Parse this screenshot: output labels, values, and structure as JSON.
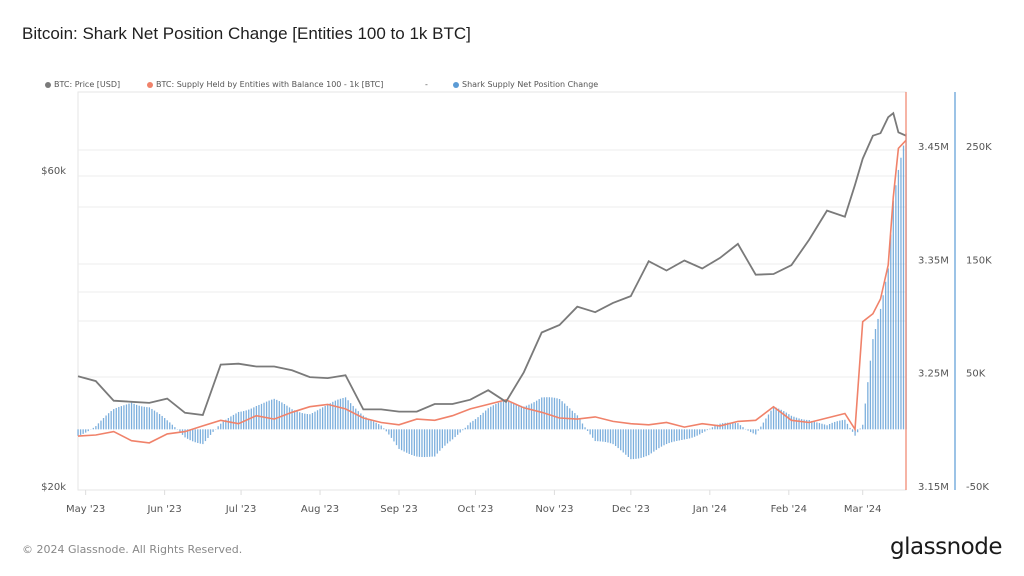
{
  "page": {
    "title": "Bitcoin: Shark Net Position Change [Entities 100 to 1k BTC]",
    "footer": "© 2024 Glassnode. All Rights Reserved.",
    "brand": "glassnode"
  },
  "legend": [
    {
      "label": "BTC: Price [USD]",
      "color": "#7a7a7a"
    },
    {
      "label": "BTC: Supply Held by Entities with Balance 100 - 1k [BTC]",
      "color": "#f0826a"
    },
    {
      "label": "-",
      "color": null
    },
    {
      "label": "Shark Supply Net Position Change",
      "color": "#5b9bd5"
    }
  ],
  "chart_data": {
    "type": "line",
    "title": "Bitcoin: Shark Net Position Change [Entities 100 to 1k BTC]",
    "x_tick_labels": [
      "May '23",
      "Jun '23",
      "Jul '23",
      "Aug '23",
      "Sep '23",
      "Oct '23",
      "Nov '23",
      "Dec '23",
      "Jan '24",
      "Feb '24",
      "Mar '24"
    ],
    "x_tick_dates": [
      "2023-05-01",
      "2023-06-01",
      "2023-07-01",
      "2023-08-01",
      "2023-09-01",
      "2023-10-01",
      "2023-11-01",
      "2023-12-01",
      "2024-01-01",
      "2024-02-01",
      "2024-03-01"
    ],
    "x_range": [
      "2023-04-28",
      "2024-03-18"
    ],
    "axes": {
      "price": {
        "side": "left",
        "scale": "log",
        "range": [
          20000,
          80000
        ],
        "tick_labels": [
          "$20k",
          "$60k"
        ],
        "tick_values": [
          20000,
          60000
        ]
      },
      "supply": {
        "side": "right",
        "scale": "linear",
        "range": [
          3.15,
          3.497
        ],
        "tick_labels": [
          "3.15M",
          "3.25M",
          "3.35M",
          "3.45M"
        ],
        "tick_values": [
          3.15,
          3.25,
          3.35,
          3.45
        ]
      },
      "net_change": {
        "side": "right-outer",
        "scale": "linear",
        "range": [
          -50,
          297
        ],
        "tick_labels": [
          "-50K",
          "50K",
          "150K",
          "250K"
        ],
        "tick_values": [
          -50,
          50,
          150,
          250
        ]
      }
    },
    "grid": true,
    "legend_position": "top-left",
    "x": [
      "2023-04-28",
      "2023-05-05",
      "2023-05-12",
      "2023-05-19",
      "2023-05-26",
      "2023-06-02",
      "2023-06-09",
      "2023-06-16",
      "2023-06-23",
      "2023-06-30",
      "2023-07-07",
      "2023-07-14",
      "2023-07-21",
      "2023-07-28",
      "2023-08-04",
      "2023-08-11",
      "2023-08-18",
      "2023-08-25",
      "2023-09-01",
      "2023-09-08",
      "2023-09-15",
      "2023-09-22",
      "2023-09-29",
      "2023-10-06",
      "2023-10-13",
      "2023-10-20",
      "2023-10-27",
      "2023-11-03",
      "2023-11-10",
      "2023-11-17",
      "2023-11-24",
      "2023-12-01",
      "2023-12-08",
      "2023-12-15",
      "2023-12-22",
      "2023-12-29",
      "2024-01-05",
      "2024-01-12",
      "2024-01-19",
      "2024-01-26",
      "2024-02-02",
      "2024-02-09",
      "2024-02-16",
      "2024-02-23",
      "2024-02-27",
      "2024-03-01",
      "2024-03-05",
      "2024-03-08",
      "2024-03-11",
      "2024-03-13",
      "2024-03-15",
      "2024-03-18"
    ],
    "series": [
      {
        "name": "BTC: Price [USD]",
        "axis": "price",
        "color": "#7a7a7a",
        "values": [
          29300,
          28800,
          26900,
          26800,
          26700,
          27100,
          25800,
          25600,
          30500,
          30600,
          30300,
          30300,
          29900,
          29200,
          29100,
          29400,
          26100,
          26100,
          25900,
          25900,
          26600,
          26600,
          27000,
          27900,
          26800,
          29700,
          34100,
          35000,
          37300,
          36600,
          37800,
          38700,
          43700,
          42300,
          43800,
          42600,
          44200,
          46400,
          41700,
          41800,
          43100,
          47100,
          52100,
          51000,
          57000,
          62400,
          67600,
          68200,
          72100,
          73100,
          68400,
          67600
        ]
      },
      {
        "name": "BTC: Supply Held by Entities with Balance 100 - 1k [BTC]",
        "axis": "supply",
        "color": "#f0826a",
        "values": [
          3.194,
          3.195,
          3.198,
          3.19,
          3.188,
          3.196,
          3.198,
          3.203,
          3.208,
          3.205,
          3.212,
          3.209,
          3.215,
          3.22,
          3.222,
          3.218,
          3.21,
          3.206,
          3.204,
          3.209,
          3.208,
          3.212,
          3.218,
          3.222,
          3.226,
          3.219,
          3.215,
          3.21,
          3.209,
          3.211,
          3.207,
          3.205,
          3.204,
          3.206,
          3.202,
          3.205,
          3.203,
          3.207,
          3.208,
          3.22,
          3.208,
          3.206,
          3.21,
          3.214,
          3.2,
          3.295,
          3.302,
          3.315,
          3.345,
          3.405,
          3.448,
          3.455
        ]
      },
      {
        "name": "Shark Supply Net Position Change",
        "axis": "net_change",
        "type": "bar",
        "color": "#5b9bd5",
        "values": [
          -4,
          3,
          16,
          25,
          20,
          6,
          -6,
          -12,
          3,
          16,
          22,
          25,
          18,
          15,
          20,
          28,
          14,
          2,
          -18,
          -22,
          -25,
          -10,
          8,
          18,
          24,
          22,
          28,
          25,
          14,
          -10,
          -15,
          -25,
          -22,
          -15,
          -8,
          -2,
          3,
          6,
          -3,
          18,
          12,
          10,
          2,
          8,
          -4,
          6,
          80,
          105,
          140,
          200,
          228,
          262
        ]
      }
    ]
  }
}
